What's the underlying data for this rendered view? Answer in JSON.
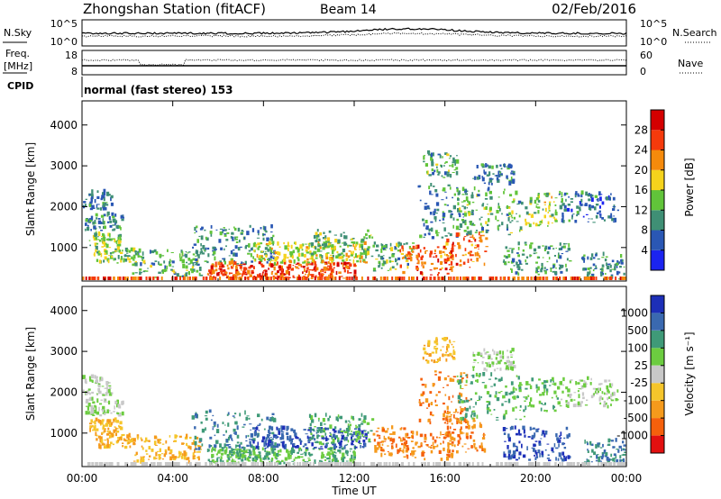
{
  "chart_data": {
    "type": "heatmap",
    "header": {
      "title": "Zhongshan Station (fitACF)",
      "beam": "Beam 14",
      "date": "02/Feb/2016"
    },
    "x_axis": {
      "label": "Time UT",
      "ticks": [
        "00:00",
        "04:00",
        "08:00",
        "12:00",
        "16:00",
        "20:00",
        "00:00"
      ],
      "range_hours": [
        0,
        24
      ]
    },
    "top_panels": {
      "nsky": {
        "left_label": "N.Sky",
        "left_ticks": [
          "10^5",
          "10^0"
        ],
        "right_ticks": [
          "10^5",
          "10^0"
        ],
        "right_label": "N.Search"
      },
      "freq": {
        "left_label_top": "Freq.",
        "left_label_unit": "[MHz]",
        "left_ticks": [
          "18",
          "8"
        ],
        "right_ticks": [
          "60",
          "0"
        ],
        "right_label": "Nave"
      },
      "cpid": {
        "label": "CPID",
        "text": "normal (fast stereo) 153"
      }
    },
    "power_panel": {
      "ylabel": "Slant Range [km]",
      "yticks": [
        1000,
        2000,
        3000,
        4000
      ],
      "ylim": [
        180,
        4590
      ],
      "colorbar_label": "Power [dB]",
      "colorbar_ticks": [
        "4",
        "8",
        "12",
        "16",
        "20",
        "24",
        "28"
      ],
      "colorbar_colors": [
        "#1b24f0",
        "#2a57b4",
        "#3f8f75",
        "#61c43a",
        "#f5d31c",
        "#f58a0c",
        "#f53a0c",
        "#d40000"
      ],
      "scale_range": [
        0,
        32
      ]
    },
    "velocity_panel": {
      "ylabel": "Slant Range [km]",
      "yticks": [
        1000,
        2000,
        3000,
        4000
      ],
      "ylim": [
        180,
        4590
      ],
      "colorbar_label": "Velocity [m s⁻¹]",
      "colorbar_ticks": [
        "1000",
        "500",
        "100",
        "25",
        "-25",
        "-100",
        "-500",
        "-1000"
      ],
      "colorbar_colors": [
        "#1d2fb8",
        "#3a69b0",
        "#3f9a78",
        "#6ccc40",
        "#c8c8c8",
        "#f5c52b",
        "#f59a1c",
        "#f5600c",
        "#e21010"
      ]
    },
    "echo_regions": [
      {
        "t": [
          0.0,
          1.3
        ],
        "r": [
          1900,
          2350
        ],
        "power": 8,
        "velocity": 25
      },
      {
        "t": [
          0.1,
          1.8
        ],
        "r": [
          1400,
          1800
        ],
        "power": 9,
        "velocity": 25
      },
      {
        "t": [
          0.3,
          1.7
        ],
        "r": [
          1000,
          1300
        ],
        "power": 14,
        "velocity": -100
      },
      {
        "t": [
          0.5,
          2.3
        ],
        "r": [
          600,
          1000
        ],
        "power": 14,
        "velocity": -100
      },
      {
        "t": [
          2.2,
          5.2
        ],
        "r": [
          250,
          900
        ],
        "power": 12,
        "velocity": -100
      },
      {
        "t": [
          4.8,
          8.5
        ],
        "r": [
          550,
          1500
        ],
        "power": 9,
        "velocity": 500
      },
      {
        "t": [
          5.5,
          12.0
        ],
        "r": [
          220,
          600
        ],
        "power": 26,
        "velocity": 100
      },
      {
        "t": [
          7.5,
          12.5
        ],
        "r": [
          600,
          1100
        ],
        "power": 17,
        "velocity": 1000
      },
      {
        "t": [
          10.0,
          12.8
        ],
        "r": [
          700,
          1400
        ],
        "power": 13,
        "velocity": 100
      },
      {
        "t": [
          12.8,
          14.6
        ],
        "r": [
          400,
          1100
        ],
        "power": 12,
        "velocity": -500
      },
      {
        "t": [
          14.0,
          16.3
        ],
        "r": [
          300,
          1000
        ],
        "power": 24,
        "velocity": -500
      },
      {
        "t": [
          14.8,
          17.0
        ],
        "r": [
          1200,
          2500
        ],
        "power": 9,
        "velocity": -500
      },
      {
        "t": [
          15.0,
          16.5
        ],
        "r": [
          2700,
          3300
        ],
        "power": 12,
        "velocity": -100
      },
      {
        "t": [
          16.0,
          17.8
        ],
        "r": [
          500,
          1300
        ],
        "power": 24,
        "velocity": -500
      },
      {
        "t": [
          16.5,
          19.5
        ],
        "r": [
          1300,
          2400
        ],
        "power": 12,
        "velocity": 100
      },
      {
        "t": [
          17.2,
          19.0
        ],
        "r": [
          2500,
          3000
        ],
        "power": 9,
        "velocity": 25
      },
      {
        "t": [
          18.5,
          21.5
        ],
        "r": [
          300,
          1100
        ],
        "power": 11,
        "velocity": 1000
      },
      {
        "t": [
          19.5,
          21.0
        ],
        "r": [
          1500,
          2300
        ],
        "power": 16,
        "velocity": 100
      },
      {
        "t": [
          21.0,
          23.6
        ],
        "r": [
          1600,
          2300
        ],
        "power": 8,
        "velocity": 25
      },
      {
        "t": [
          22.0,
          23.9
        ],
        "r": [
          200,
          800
        ],
        "power": 9,
        "velocity": 500
      }
    ]
  }
}
